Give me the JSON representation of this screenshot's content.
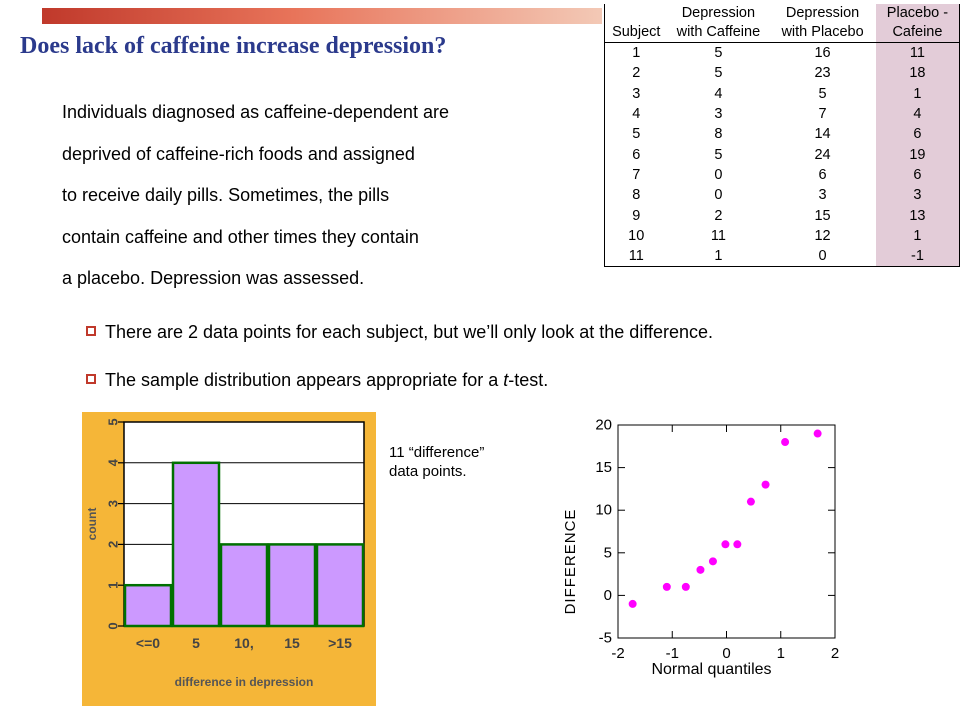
{
  "title": "Does lack of caffeine increase depression?",
  "paragraph": [
    "Individuals diagnosed as caffeine-dependent are",
    "deprived of caffeine-rich foods and assigned",
    "to receive daily pills. Sometimes, the pills",
    "contain caffeine and other times they contain",
    "a placebo. Depression was assessed."
  ],
  "bullets": [
    {
      "pre": "There are 2 data points for each subject, but we’ll only look at the difference.",
      "ital": "",
      "post": ""
    },
    {
      "pre": "The sample distribution appears appropriate for a ",
      "ital": "t",
      "post": "-test."
    }
  ],
  "note": [
    "11 “difference”",
    "data points."
  ],
  "colors": {
    "title": "#2b3a8c",
    "accent": "#c0392b",
    "hist_bg": "#f5b638",
    "bar": "#cc99ff",
    "bar_edge": "#007000",
    "point": "#ff00ff",
    "diff_col": "#e3ccd8"
  },
  "table": {
    "headers": [
      [
        "",
        "Depression",
        "Depression",
        "Placebo -"
      ],
      [
        "Subject",
        "with Caffeine",
        "with Placebo",
        "Cafeine"
      ]
    ],
    "rows": [
      [
        "1",
        "5",
        "16",
        "11"
      ],
      [
        "2",
        "5",
        "23",
        "18"
      ],
      [
        "3",
        "4",
        "5",
        "1"
      ],
      [
        "4",
        "3",
        "7",
        "4"
      ],
      [
        "5",
        "8",
        "14",
        "6"
      ],
      [
        "6",
        "5",
        "24",
        "19"
      ],
      [
        "7",
        "0",
        "6",
        "6"
      ],
      [
        "8",
        "0",
        "3",
        "3"
      ],
      [
        "9",
        "2",
        "15",
        "13"
      ],
      [
        "10",
        "11",
        "12",
        "1"
      ],
      [
        "11",
        "1",
        "0",
        "-1"
      ]
    ]
  },
  "chart_data": [
    {
      "type": "bar",
      "categories": [
        "<=0",
        "5",
        "10,",
        "15",
        ">15"
      ],
      "values": [
        1,
        4,
        2,
        2,
        2
      ],
      "xlabel": "difference in depression",
      "ylabel": "count",
      "ylim": [
        0,
        5
      ],
      "yticks": [
        "0",
        "1",
        "2",
        "3",
        "4",
        "5"
      ]
    },
    {
      "type": "scatter",
      "x": [
        -1.73,
        -1.1,
        -0.75,
        -0.48,
        -0.25,
        -0.02,
        0.2,
        0.45,
        0.72,
        1.08,
        1.68
      ],
      "y": [
        -1,
        1,
        1,
        3,
        4,
        6,
        6,
        11,
        13,
        18,
        19
      ],
      "xlabel": "Normal quantiles",
      "ylabel": "DIFFERENCE",
      "xlim": [
        -2,
        2
      ],
      "ylim": [
        -5,
        20
      ],
      "xticks": [
        "-2",
        "-1",
        "0",
        "1",
        "2"
      ],
      "yticks": [
        "-5",
        "0",
        "5",
        "10",
        "15",
        "20"
      ]
    }
  ]
}
